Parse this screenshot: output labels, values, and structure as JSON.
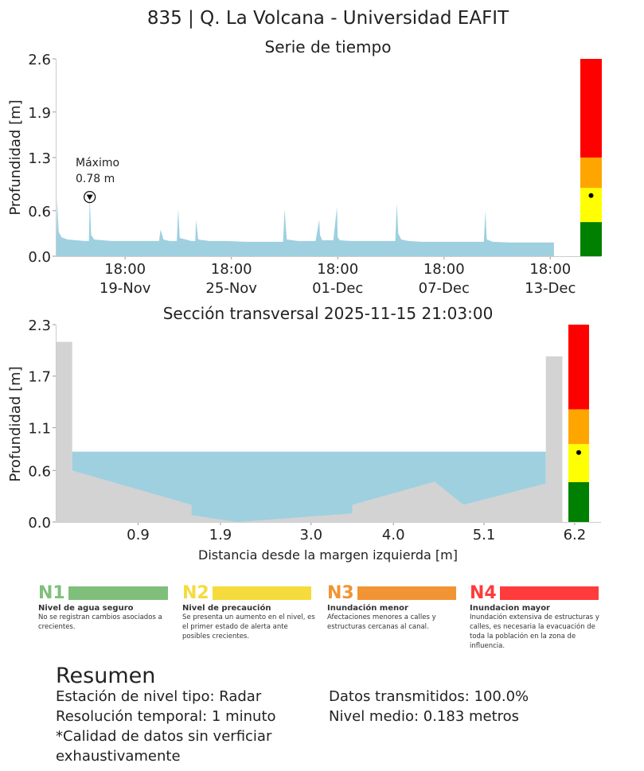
{
  "figure": {
    "title": "835 | Q. La Volcana - Universidad EAFIT"
  },
  "chart_data": [
    {
      "type": "area",
      "title": "Serie de tiempo",
      "ylabel": "Profundidad [m]",
      "ylim": [
        0,
        2.6
      ],
      "yticks": [
        "0.0",
        "0.6",
        "1.3",
        "1.9",
        "2.6"
      ],
      "xticks": [
        {
          "time": "18:00",
          "date": "19-Nov"
        },
        {
          "time": "18:00",
          "date": "25-Nov"
        },
        {
          "time": "18:00",
          "date": "01-Dec"
        },
        {
          "time": "18:00",
          "date": "07-Dec"
        },
        {
          "time": "18:00",
          "date": "13-Dec"
        }
      ],
      "xrange": [
        "2025-11-15 21:03",
        "2025-12-16"
      ],
      "color": "#9ed0e0",
      "series": [
        {
          "x": [
            "2025-11-15 21:00",
            "2025-11-15 22:00",
            "2025-11-16 00:00",
            "2025-11-16 04:00",
            "2025-11-16 12:00",
            "2025-11-17 00:00",
            "2025-11-17 12:00",
            "2025-11-17 17:00",
            "2025-11-17 18:00",
            "2025-11-17 20:00",
            "2025-11-18 00:00",
            "2025-11-18 12:00",
            "2025-11-19 00:00",
            "2025-11-20 00:00",
            "2025-11-21 00:00",
            "2025-11-21 16:00",
            "2025-11-21 18:00",
            "2025-11-21 22:00",
            "2025-11-22 06:00",
            "2025-11-22 16:00",
            "2025-11-22 18:00",
            "2025-11-22 20:00",
            "2025-11-23 12:00",
            "2025-11-23 17:00",
            "2025-11-23 18:00",
            "2025-11-23 21:00",
            "2025-11-24 12:00",
            "2025-11-25 12:00",
            "2025-11-26 12:00",
            "2025-11-27 12:00",
            "2025-11-28 12:00",
            "2025-11-28 16:00",
            "2025-11-28 18:00",
            "2025-11-28 21:00",
            "2025-11-29 12:00",
            "2025-11-30 12:00",
            "2025-11-30 17:00",
            "2025-11-30 18:00",
            "2025-11-30 21:00",
            "2025-12-01 12:00",
            "2025-12-01 17:00",
            "2025-12-01 18:00",
            "2025-12-01 21:00",
            "2025-12-02 12:00",
            "2025-12-03 12:00",
            "2025-12-04 12:00",
            "2025-12-05 00:00",
            "2025-12-05 02:00",
            "2025-12-05 04:00",
            "2025-12-05 08:00",
            "2025-12-05 18:00",
            "2025-12-06 12:00",
            "2025-12-07 12:00",
            "2025-12-08 12:00",
            "2025-12-09 12:00",
            "2025-12-10 00:00",
            "2025-12-10 02:00",
            "2025-12-10 04:00",
            "2025-12-10 12:00",
            "2025-12-11 12:00",
            "2025-12-12 12:00",
            "2025-12-13 12:00",
            "2025-12-13 23:00"
          ],
          "y": [
            0.2,
            0.75,
            0.32,
            0.25,
            0.22,
            0.21,
            0.2,
            0.2,
            0.78,
            0.28,
            0.22,
            0.21,
            0.2,
            0.2,
            0.2,
            0.2,
            0.35,
            0.22,
            0.2,
            0.2,
            0.62,
            0.24,
            0.2,
            0.2,
            0.48,
            0.22,
            0.2,
            0.2,
            0.19,
            0.19,
            0.19,
            0.19,
            0.62,
            0.22,
            0.2,
            0.2,
            0.48,
            0.28,
            0.21,
            0.21,
            0.65,
            0.25,
            0.21,
            0.2,
            0.2,
            0.2,
            0.2,
            0.7,
            0.3,
            0.22,
            0.2,
            0.19,
            0.19,
            0.19,
            0.19,
            0.19,
            0.6,
            0.22,
            0.19,
            0.18,
            0.18,
            0.18,
            0.18
          ]
        }
      ],
      "annotations": [
        {
          "label": "Máximo",
          "value": "0.78 m",
          "x": "2025-11-17 18:00",
          "y": 0.78
        }
      ],
      "level_bar": {
        "segments": [
          {
            "from": 0.0,
            "to": 0.45,
            "color": "#008000"
          },
          {
            "from": 0.45,
            "to": 0.9,
            "color": "#ffff00"
          },
          {
            "from": 0.9,
            "to": 1.3,
            "color": "#ffa500"
          },
          {
            "from": 1.3,
            "to": 2.6,
            "color": "#ff0000"
          }
        ],
        "marker": 0.8
      }
    },
    {
      "type": "area",
      "title": "Sección transversal 2025-11-15 21:03:00",
      "ylabel": "Profundidad [m]",
      "xlabel": "Distancia desde la margen izquierda [m]",
      "xlim": [
        -0.1,
        6.4
      ],
      "ylim": [
        0,
        2.3
      ],
      "xticks": [
        "0.9",
        "1.9",
        "3.0",
        "4.0",
        "5.1",
        "6.2"
      ],
      "yticks": [
        "0.0",
        "0.6",
        "1.1",
        "1.7",
        "2.3"
      ],
      "water_level": 0.82,
      "water_color": "#9ed0e0",
      "ground_color": "#d3d3d3",
      "ground": {
        "x": [
          -0.1,
          0.1,
          0.1,
          1.55,
          1.55,
          2.1,
          3.5,
          3.5,
          4.5,
          4.85,
          5.85,
          5.85,
          6.05,
          6.05
        ],
        "y": [
          2.1,
          2.1,
          0.6,
          0.2,
          0.08,
          0.0,
          0.1,
          0.2,
          0.47,
          0.2,
          0.45,
          1.93,
          1.93,
          0.0
        ]
      },
      "level_bar": {
        "segments": [
          {
            "from": 0.0,
            "to": 0.47,
            "color": "#008000"
          },
          {
            "from": 0.47,
            "to": 0.92,
            "color": "#ffff00"
          },
          {
            "from": 0.92,
            "to": 1.33,
            "color": "#ffa500"
          },
          {
            "from": 1.33,
            "to": 2.33,
            "color": "#ff0000"
          }
        ],
        "marker": 0.82
      }
    }
  ],
  "levels": [
    {
      "code": "N1",
      "color": "#7fbf7b",
      "code_color": "#7fbf7b",
      "name": "Nivel de agua seguro",
      "desc": "No se registran cambios asociados a crecientes."
    },
    {
      "code": "N2",
      "color": "#f5db3c",
      "code_color": "#f5db3c",
      "name": "Nivel de precaución",
      "desc": "Se presenta un aumento en el nivel, es el primer estado de alerta ante posibles crecientes."
    },
    {
      "code": "N3",
      "color": "#f29433",
      "code_color": "#f29433",
      "name": "Inundación menor",
      "desc": "Afectaciones menores a calles y estructuras cercanas al canal."
    },
    {
      "code": "N4",
      "color": "#ff3b3b",
      "code_color": "#ff3b3b",
      "name": "Inundacion mayor",
      "desc": "Inundación extensiva de estructuras y calles, es necesaria la evacuación de toda la población en la zona de influencia."
    }
  ],
  "summary": {
    "heading": "Resumen",
    "left": [
      "Estación de nivel tipo: Radar",
      "Resolución temporal: 1 minuto",
      "*Calidad de datos sin verficiar exhaustivamente"
    ],
    "right": [
      "Datos transmitidos: 100.0%",
      "Nivel medio: 0.183 metros"
    ]
  }
}
